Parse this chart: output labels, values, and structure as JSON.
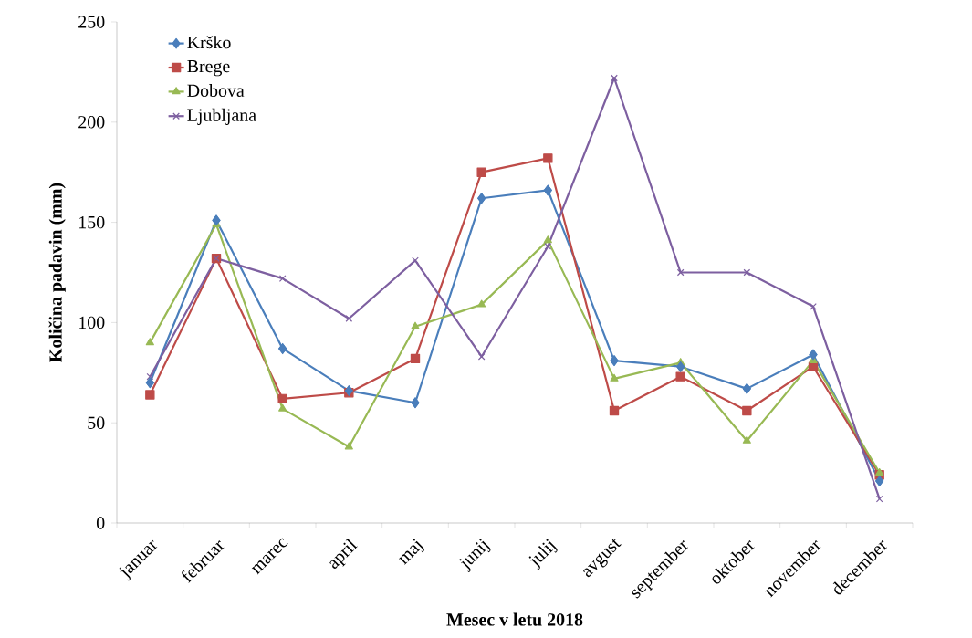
{
  "chart_data": {
    "type": "line",
    "xlabel": "Mesec v letu 2018",
    "ylabel": "Količina padavin (mm)",
    "categories": [
      "januar",
      "februar",
      "marec",
      "april",
      "maj",
      "junij",
      "julij",
      "avgust",
      "september",
      "oktober",
      "november",
      "december"
    ],
    "series": [
      {
        "name": "Krško",
        "color": "#4a7ebb",
        "marker": "diamond",
        "values": [
          70,
          151,
          87,
          66,
          60,
          162,
          166,
          81,
          78,
          67,
          84,
          21
        ]
      },
      {
        "name": "Brege",
        "color": "#be4b48",
        "marker": "square",
        "values": [
          64,
          132,
          62,
          65,
          82,
          175,
          182,
          56,
          73,
          56,
          78,
          24
        ]
      },
      {
        "name": "Dobova",
        "color": "#98b954",
        "marker": "triangle",
        "values": [
          90,
          149,
          57,
          38,
          98,
          109,
          141,
          72,
          80,
          41,
          81,
          25
        ]
      },
      {
        "name": "Ljubljana",
        "color": "#7d5fa0",
        "marker": "cross",
        "values": [
          73,
          132,
          122,
          102,
          131,
          83,
          138,
          222,
          125,
          125,
          108,
          12
        ]
      }
    ],
    "ylim": [
      0,
      250
    ],
    "yticks": [
      0,
      50,
      100,
      150,
      200,
      250
    ],
    "legend": "top left",
    "line_style": "solid"
  }
}
